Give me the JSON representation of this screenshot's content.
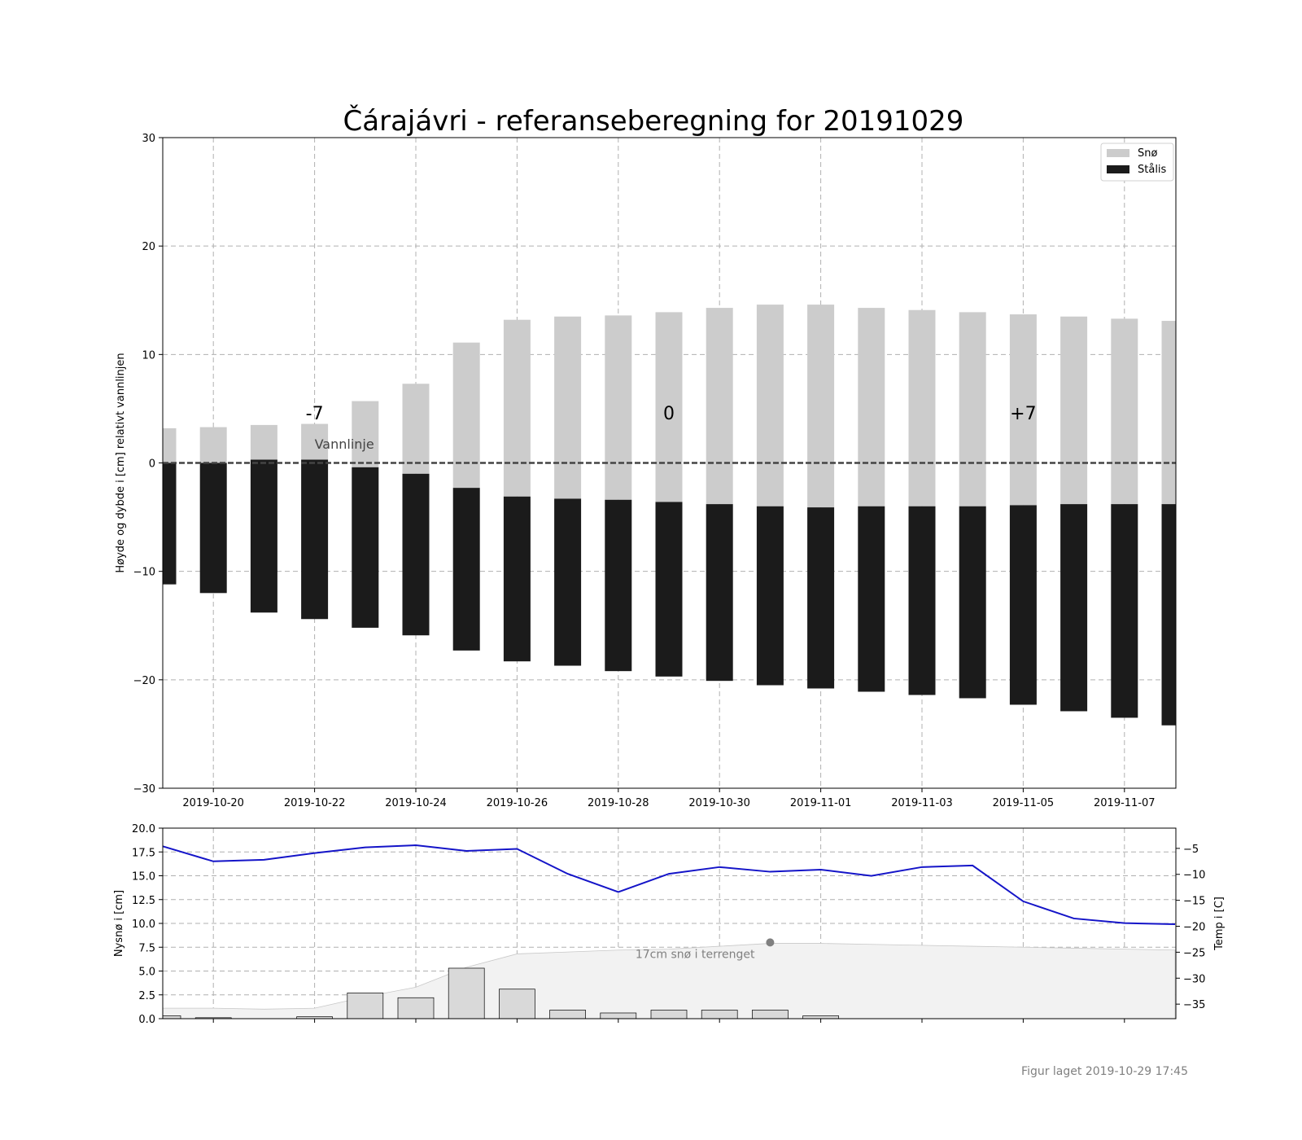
{
  "title": "Čárajávri - referanseberegning for 20191029",
  "credit": "Figur laget 2019-10-29 17:45",
  "colors": {
    "snow": "#cccccc",
    "ice": "#1b1b1b",
    "temp_line": "#1414c8",
    "new_snow_bar": "#d9d9d9",
    "terrain_fill": "#f2f2f2",
    "marker": "#808080"
  },
  "chart_data": [
    {
      "type": "bar",
      "ylabel": "Høyde og dybde i [cm] relativt vannlinjen",
      "ylim": [
        -30,
        30
      ],
      "yticks": [
        "−30",
        "−20",
        "−10",
        "0",
        "10",
        "20",
        "30"
      ],
      "ytick_values": [
        -30,
        -20,
        -10,
        0,
        10,
        20,
        30
      ],
      "xlim": [
        "2019-10-19",
        "2019-11-08"
      ],
      "xticks": [
        "2019-10-20",
        "2019-10-22",
        "2019-10-24",
        "2019-10-26",
        "2019-10-28",
        "2019-10-30",
        "2019-11-01",
        "2019-11-03",
        "2019-11-05",
        "2019-11-07"
      ],
      "grid": true,
      "legend_position": "top-right",
      "legend": [
        "Snø",
        "Stålis"
      ],
      "waterline_label": "Vannlinje",
      "day_labels": [
        {
          "date": "2019-10-22",
          "text": "-7"
        },
        {
          "date": "2019-10-29",
          "text": "0"
        },
        {
          "date": "2019-11-05",
          "text": "+7"
        }
      ],
      "dates": [
        "2019-10-19",
        "2019-10-20",
        "2019-10-21",
        "2019-10-22",
        "2019-10-23",
        "2019-10-24",
        "2019-10-25",
        "2019-10-26",
        "2019-10-27",
        "2019-10-28",
        "2019-10-29",
        "2019-10-30",
        "2019-10-31",
        "2019-11-01",
        "2019-11-02",
        "2019-11-03",
        "2019-11-04",
        "2019-11-05",
        "2019-11-06",
        "2019-11-07",
        "2019-11-08"
      ],
      "series": [
        {
          "name": "Snø",
          "bottom": [
            0.0,
            0.0,
            0.3,
            0.3,
            -0.4,
            -1.0,
            -2.3,
            -3.1,
            -3.3,
            -3.4,
            -3.6,
            -3.8,
            -4.0,
            -4.1,
            -4.0,
            -4.0,
            -4.0,
            -3.9,
            -3.8,
            -3.8,
            -3.8
          ],
          "top": [
            3.2,
            3.3,
            3.5,
            3.6,
            5.7,
            7.3,
            11.1,
            13.2,
            13.5,
            13.6,
            13.9,
            14.3,
            14.6,
            14.6,
            14.3,
            14.1,
            13.9,
            13.7,
            13.5,
            13.3,
            13.1
          ]
        },
        {
          "name": "Stålis",
          "bottom": [
            -11.2,
            -12.0,
            -13.8,
            -14.4,
            -15.2,
            -15.9,
            -17.3,
            -18.3,
            -18.7,
            -19.2,
            -19.7,
            -20.1,
            -20.5,
            -20.8,
            -21.1,
            -21.4,
            -21.7,
            -22.3,
            -22.9,
            -23.5,
            -24.2
          ],
          "top": [
            0.0,
            0.0,
            0.3,
            0.3,
            -0.4,
            -1.0,
            -2.3,
            -3.1,
            -3.3,
            -3.4,
            -3.6,
            -3.8,
            -4.0,
            -4.1,
            -4.0,
            -4.0,
            -4.0,
            -3.9,
            -3.8,
            -3.8,
            -3.8
          ]
        }
      ]
    },
    {
      "type": "bar",
      "ylabel": "Nysnø i [cm]",
      "ylabel_right": "Temp i [C]",
      "ylim": [
        0,
        20
      ],
      "yticks": [
        "0.0",
        "2.5",
        "5.0",
        "7.5",
        "10.0",
        "12.5",
        "15.0",
        "17.5",
        "20.0"
      ],
      "ytick_values": [
        0,
        2.5,
        5,
        7.5,
        10,
        12.5,
        15,
        17.5,
        20
      ],
      "ylim_right": [
        -37.8,
        -1.1
      ],
      "yticks_right": [
        "−35",
        "−30",
        "−25",
        "−20",
        "−15",
        "−10",
        "−5"
      ],
      "ytick_values_right": [
        -35,
        -30,
        -25,
        -20,
        -15,
        -10,
        -5
      ],
      "grid": true,
      "terrain_label": "17cm snø i terrenget",
      "terrain_marker": {
        "date": "2019-10-31",
        "value": 8.0
      },
      "terrain": {
        "x": [
          "2019-10-19",
          "2019-10-20",
          "2019-10-21",
          "2019-10-22",
          "2019-10-23",
          "2019-10-24",
          "2019-10-25",
          "2019-10-26",
          "2019-10-27",
          "2019-10-28",
          "2019-10-29",
          "2019-10-30",
          "2019-10-31",
          "2019-11-01",
          "2019-11-02",
          "2019-11-03",
          "2019-11-04",
          "2019-11-05",
          "2019-11-06",
          "2019-11-07",
          "2019-11-08"
        ],
        "values": [
          1.1,
          1.1,
          1.0,
          1.1,
          2.3,
          3.3,
          5.4,
          6.8,
          7.0,
          7.2,
          7.3,
          7.6,
          7.9,
          7.9,
          7.8,
          7.7,
          7.6,
          7.5,
          7.4,
          7.3,
          7.2
        ]
      },
      "new_snow": {
        "x": [
          "2019-10-19",
          "2019-10-20",
          "2019-10-21",
          "2019-10-22",
          "2019-10-23",
          "2019-10-24",
          "2019-10-25",
          "2019-10-26",
          "2019-10-27",
          "2019-10-28",
          "2019-10-29",
          "2019-10-30",
          "2019-10-31",
          "2019-11-01"
        ],
        "values": [
          0.3,
          0.1,
          0.0,
          0.2,
          2.7,
          2.2,
          5.3,
          3.1,
          0.9,
          0.6,
          0.9,
          0.9,
          0.9,
          0.3
        ]
      },
      "temperature": {
        "x": [
          "2019-10-19",
          "2019-10-20",
          "2019-10-21",
          "2019-10-22",
          "2019-10-23",
          "2019-10-24",
          "2019-10-25",
          "2019-10-26",
          "2019-10-27",
          "2019-10-28",
          "2019-10-29",
          "2019-10-30",
          "2019-10-31",
          "2019-11-01",
          "2019-11-02",
          "2019-11-03",
          "2019-11-04",
          "2019-11-05",
          "2019-11-06",
          "2019-11-07",
          "2019-11-08"
        ],
        "values": [
          -4.6,
          -7.5,
          -7.2,
          -5.9,
          -4.8,
          -4.4,
          -5.5,
          -5.1,
          -9.9,
          -13.4,
          -9.9,
          -8.6,
          -9.5,
          -9.1,
          -10.3,
          -8.6,
          -8.3,
          -15.2,
          -18.5,
          -19.4,
          -19.6
        ]
      }
    }
  ]
}
